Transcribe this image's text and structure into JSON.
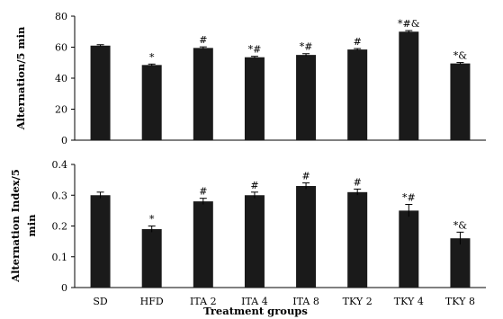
{
  "chart_data": [
    {
      "type": "bar",
      "ylabel": "Alternation/5 min",
      "ylim": [
        0,
        80
      ],
      "yticks": [
        "0",
        "20",
        "40",
        "60",
        "80"
      ],
      "yticks_values": [
        0,
        20,
        40,
        60,
        80
      ],
      "categories": [
        "SD",
        "HFD",
        "ITA 2",
        "ITA 4",
        "ITA 8",
        "TKY 2",
        "TKY 4",
        "TKY 8"
      ],
      "values": [
        61,
        48.5,
        59.5,
        53.5,
        55,
        58.5,
        70,
        49.5
      ],
      "errors": [
        0.6,
        0.6,
        0.7,
        0.6,
        0.8,
        0.6,
        0.7,
        0.6
      ],
      "annotations": [
        "",
        "*",
        "#",
        "*#",
        "*#",
        "#",
        "*#&",
        "*&"
      ],
      "bar_color": "#1a1a1a"
    },
    {
      "type": "bar",
      "ylabel": "Alternation Index/5 min",
      "ylim": [
        0,
        0.4
      ],
      "yticks": [
        "0",
        "0.1",
        "0.2",
        "0.3",
        "0.4"
      ],
      "yticks_values": [
        0,
        0.1,
        0.2,
        0.3,
        0.4
      ],
      "categories": [
        "SD",
        "HFD",
        "ITA 2",
        "ITA 4",
        "ITA 8",
        "TKY 2",
        "TKY 4",
        "TKY 8"
      ],
      "values": [
        0.3,
        0.19,
        0.28,
        0.3,
        0.33,
        0.31,
        0.25,
        0.16
      ],
      "errors": [
        0.01,
        0.01,
        0.01,
        0.01,
        0.01,
        0.01,
        0.02,
        0.02
      ],
      "annotations": [
        "",
        "*",
        "#",
        "#",
        "#",
        "#",
        "*#",
        "*&"
      ],
      "xlabel": "Treatment groups",
      "bar_color": "#1a1a1a"
    }
  ]
}
